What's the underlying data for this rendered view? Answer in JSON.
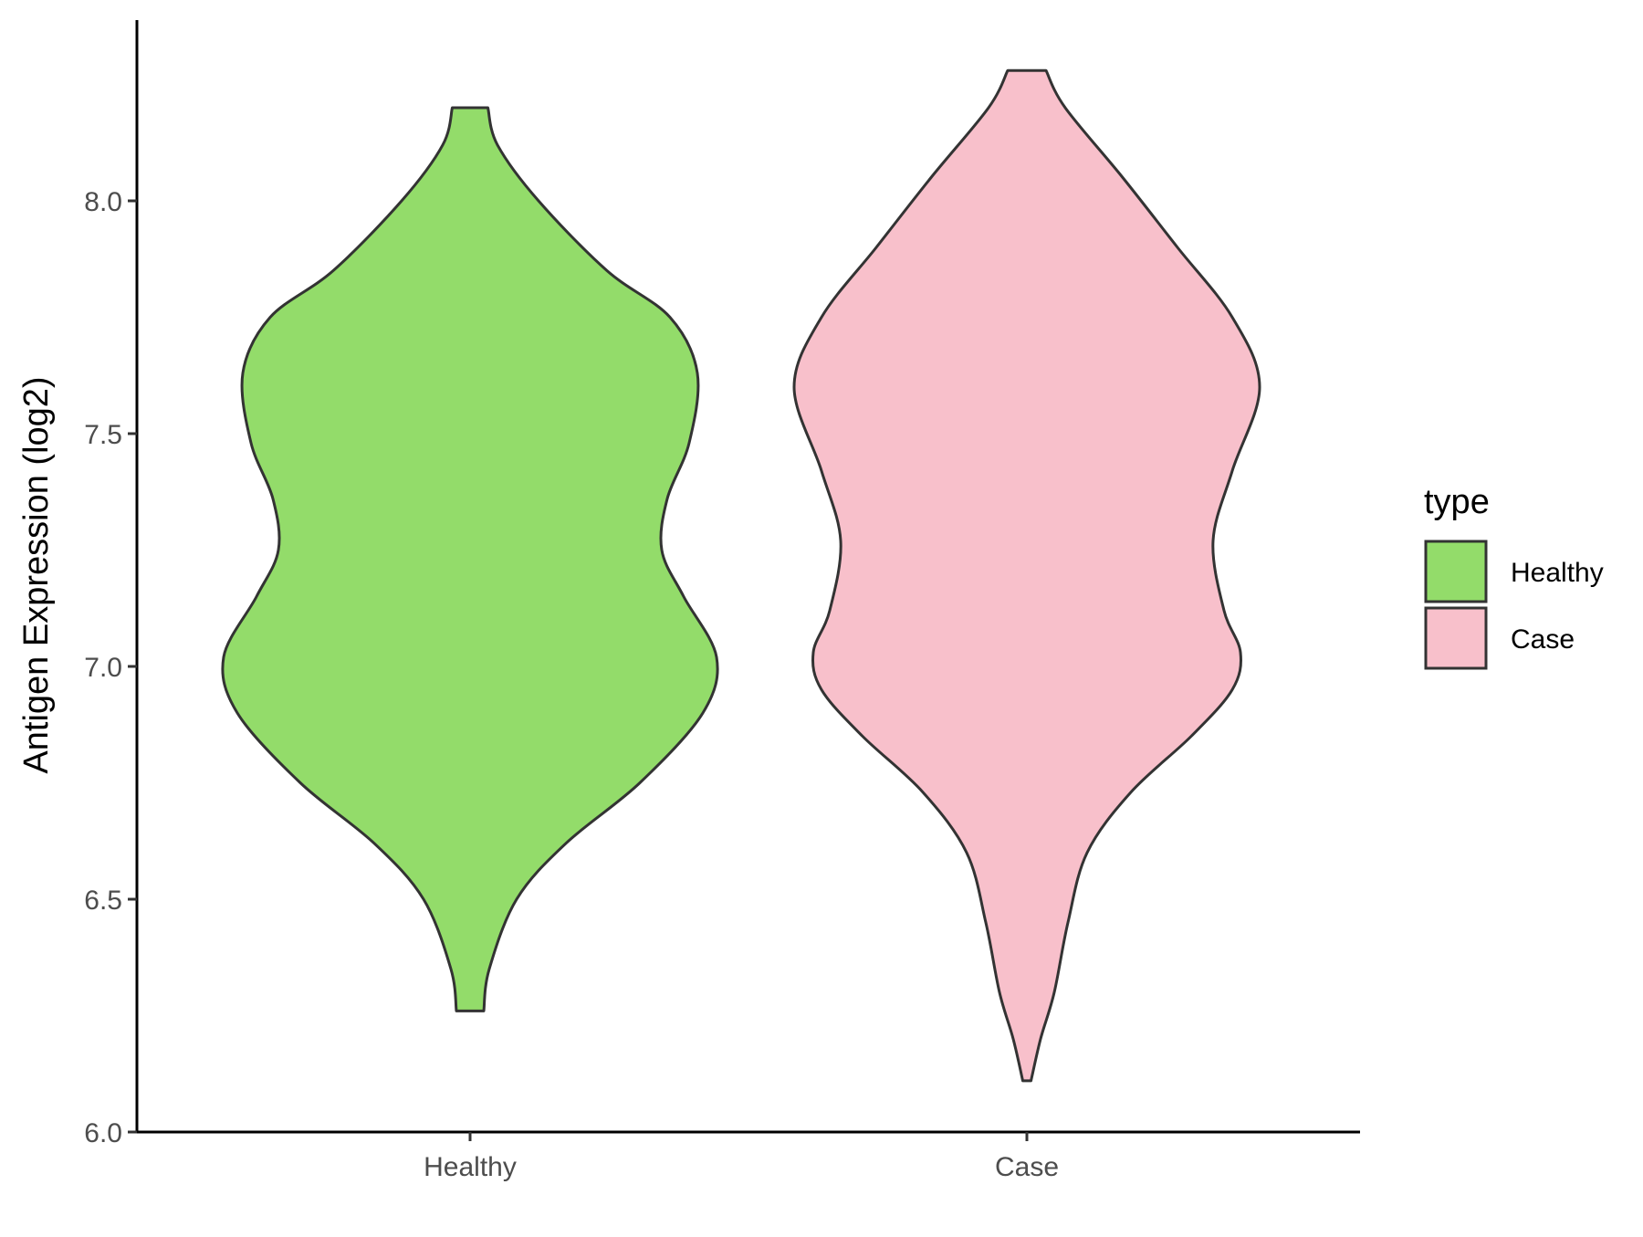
{
  "chart_data": {
    "type": "violin",
    "title": "",
    "xlabel": "",
    "ylabel": "Antigen Expression (log2)",
    "categories": [
      "Healthy",
      "Case"
    ],
    "ylim": [
      6.0,
      8.3
    ],
    "yticks": [
      6.0,
      6.5,
      7.0,
      7.5,
      8.0
    ],
    "ytick_labels": [
      "6.0",
      "6.5",
      "7.0",
      "7.5",
      "8.0"
    ],
    "grid": false,
    "legend": {
      "title": "type",
      "position": "right",
      "entries": [
        {
          "label": "Healthy",
          "color": "#93dc6a"
        },
        {
          "label": "Case",
          "color": "#f8c0cb"
        }
      ]
    },
    "series": [
      {
        "name": "Healthy",
        "color": "#93dc6a",
        "outline": "#333333",
        "y_min": 6.26,
        "y_max": 8.2,
        "density_profile": [
          {
            "y": 6.26,
            "half_width": 0.05
          },
          {
            "y": 6.35,
            "half_width": 0.07
          },
          {
            "y": 6.5,
            "half_width": 0.17
          },
          {
            "y": 6.62,
            "half_width": 0.35
          },
          {
            "y": 6.75,
            "half_width": 0.62
          },
          {
            "y": 6.9,
            "half_width": 0.85
          },
          {
            "y": 7.02,
            "half_width": 0.9
          },
          {
            "y": 7.15,
            "half_width": 0.78
          },
          {
            "y": 7.25,
            "half_width": 0.7
          },
          {
            "y": 7.36,
            "half_width": 0.72
          },
          {
            "y": 7.48,
            "half_width": 0.8
          },
          {
            "y": 7.63,
            "half_width": 0.83
          },
          {
            "y": 7.75,
            "half_width": 0.73
          },
          {
            "y": 7.85,
            "half_width": 0.5
          },
          {
            "y": 8.0,
            "half_width": 0.25
          },
          {
            "y": 8.12,
            "half_width": 0.1
          },
          {
            "y": 8.2,
            "half_width": 0.065
          }
        ]
      },
      {
        "name": "Case",
        "color": "#f8c0cb",
        "outline": "#333333",
        "y_min": 6.11,
        "y_max": 8.28,
        "density_profile": [
          {
            "y": 6.11,
            "half_width": 0.015
          },
          {
            "y": 6.2,
            "half_width": 0.05
          },
          {
            "y": 6.3,
            "half_width": 0.1
          },
          {
            "y": 6.45,
            "half_width": 0.15
          },
          {
            "y": 6.6,
            "half_width": 0.22
          },
          {
            "y": 6.73,
            "half_width": 0.38
          },
          {
            "y": 6.85,
            "half_width": 0.6
          },
          {
            "y": 6.95,
            "half_width": 0.75
          },
          {
            "y": 7.03,
            "half_width": 0.78
          },
          {
            "y": 7.12,
            "half_width": 0.72
          },
          {
            "y": 7.27,
            "half_width": 0.68
          },
          {
            "y": 7.42,
            "half_width": 0.75
          },
          {
            "y": 7.6,
            "half_width": 0.85
          },
          {
            "y": 7.75,
            "half_width": 0.75
          },
          {
            "y": 7.9,
            "half_width": 0.55
          },
          {
            "y": 8.05,
            "half_width": 0.35
          },
          {
            "y": 8.2,
            "half_width": 0.14
          },
          {
            "y": 8.28,
            "half_width": 0.07
          }
        ]
      }
    ]
  }
}
